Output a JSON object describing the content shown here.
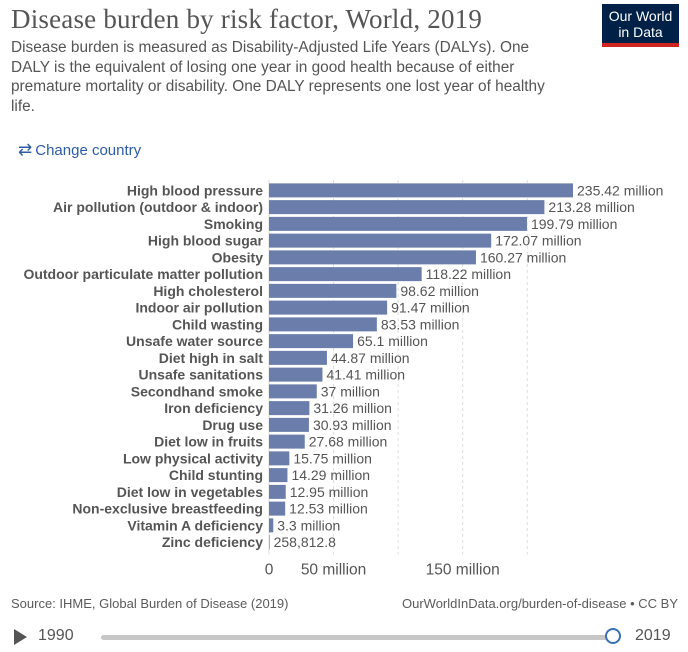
{
  "header": {
    "title": "Disease burden by risk factor, World, 2019",
    "subtitle": "Disease burden is measured as Disability-Adjusted Life Years (DALYs). One DALY is the equivalent of losing one year in good health because of either premature mortality or disability. One DALY represents one lost year of healthy life.",
    "logo_line1": "Our World",
    "logo_line2": "in Data"
  },
  "controls": {
    "change_country_label": "Change country",
    "swap_icon": "⇄"
  },
  "colors": {
    "bar": "#6b7eab",
    "logo_bg": "#002147",
    "logo_accent": "#ce261e",
    "link": "#2c5ca6"
  },
  "chart_data": {
    "type": "bar",
    "orientation": "horizontal",
    "categories": [
      "High blood pressure",
      "Air pollution (outdoor & indoor)",
      "Smoking",
      "High blood sugar",
      "Obesity",
      "Outdoor particulate matter pollution",
      "High cholesterol",
      "Indoor air pollution",
      "Child wasting",
      "Unsafe water source",
      "Diet high in salt",
      "Unsafe sanitations",
      "Secondhand smoke",
      "Iron deficiency",
      "Drug use",
      "Diet low in fruits",
      "Low physical activity",
      "Child stunting",
      "Diet low in vegetables",
      "Non-exclusive breastfeeding",
      "Vitamin A deficiency",
      "Zinc deficiency"
    ],
    "values": [
      235420000,
      213280000,
      199790000,
      172070000,
      160270000,
      118220000,
      98620000,
      91470000,
      83530000,
      65100000,
      44870000,
      41410000,
      37000000,
      31260000,
      30930000,
      27680000,
      15750000,
      14290000,
      12950000,
      12530000,
      3300000,
      258812.8
    ],
    "value_labels": [
      "235.42 million",
      "213.28 million",
      "199.79 million",
      "172.07 million",
      "160.27 million",
      "118.22 million",
      "98.62 million",
      "91.47 million",
      "83.53 million",
      "65.1 million",
      "44.87 million",
      "41.41 million",
      "37 million",
      "31.26 million",
      "30.93 million",
      "27.68 million",
      "15.75 million",
      "14.29 million",
      "12.95 million",
      "12.53 million",
      "3.3 million",
      "258,812.8"
    ],
    "x_ticks": [
      {
        "value": 0,
        "label": "0"
      },
      {
        "value": 50000000,
        "label": "50 million"
      },
      {
        "value": 150000000,
        "label": "150 million"
      }
    ],
    "x_gridlines": [
      0,
      50000000,
      100000000,
      150000000,
      200000000
    ],
    "xlim": [
      0,
      235420000
    ],
    "title": "",
    "xlabel": "",
    "ylabel": "",
    "grid": "vertical dashed"
  },
  "footer": {
    "source": "Source: IHME, Global Burden of Disease (2019)",
    "credit": "OurWorldInData.org/burden-of-disease • CC BY"
  },
  "timeline": {
    "start_year": "1990",
    "end_year": "2019",
    "selected_position": 1.0
  }
}
